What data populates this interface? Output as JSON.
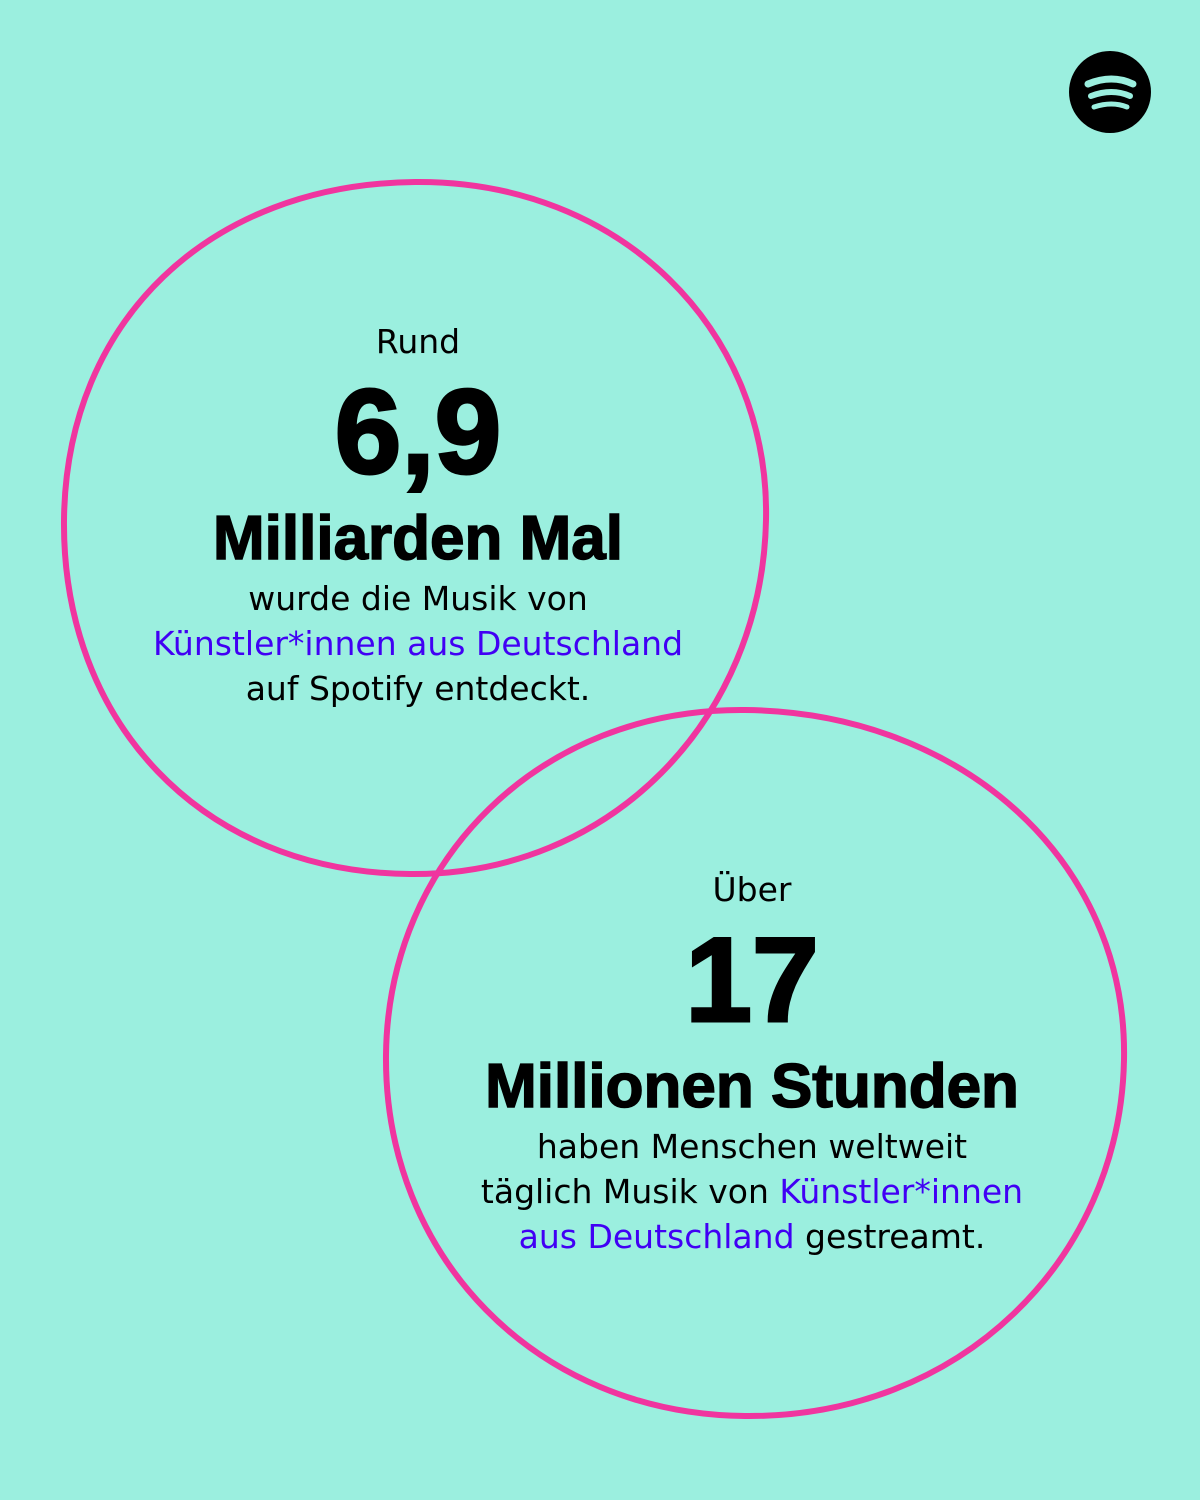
{
  "colors": {
    "background": "#9befdf",
    "circle": "#f0359f",
    "highlight": "#4100f4",
    "text": "#000000"
  },
  "logo": {
    "icon": "spotify-icon"
  },
  "stat1": {
    "prefix": "Rund",
    "number": "6,9",
    "unit": "Milliarden Mal",
    "line1": "wurde die Musik von",
    "line2_highlight": "Künstler*innen aus Deutschland",
    "line3": "auf Spotify entdeckt."
  },
  "stat2": {
    "prefix": "Über",
    "number": "17",
    "unit": "Millionen Stunden",
    "line1": "haben Menschen weltweit",
    "line2_text": "täglich Musik von ",
    "line2_highlight": "Künstler*innen",
    "line3_highlight": "aus Deutschland",
    "line3_text": " gestreamt."
  }
}
